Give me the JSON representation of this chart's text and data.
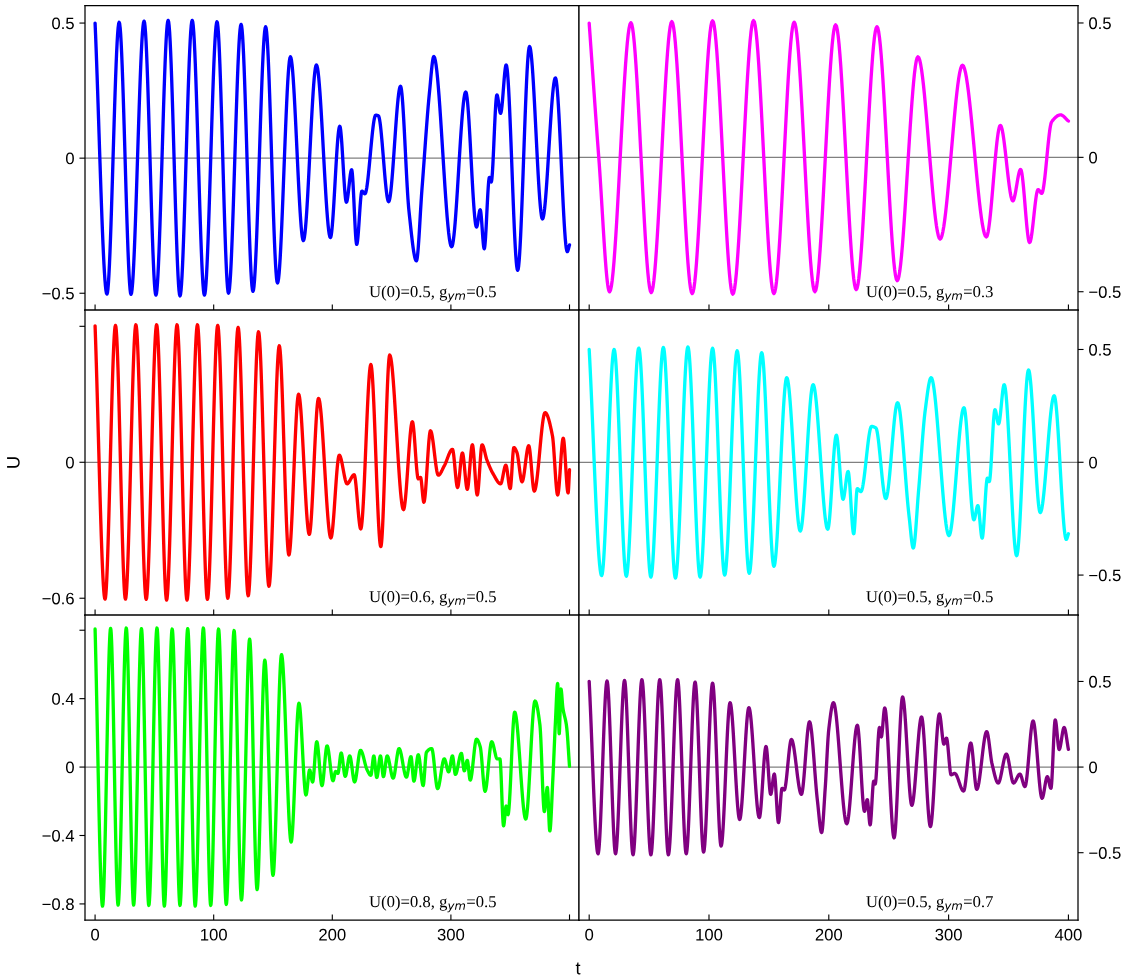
{
  "chart_data": [
    {
      "type": "line",
      "xlim": [
        -8.5,
        408
      ],
      "ylim": [
        -0.562,
        0.565
      ],
      "xticks": [
        0,
        100,
        200,
        300,
        400
      ],
      "yticks": [
        -0.5,
        0,
        0.5
      ],
      "tick_labels": "y",
      "ref_lines": [
        {
          "axis": "y",
          "value": 0,
          "color": "#808080"
        }
      ],
      "annotations": [
        "U(0)=0.5, g$_{ym}$=0.5"
      ],
      "series": [
        {
          "color": "#0000ff",
          "x": [
            0,
            10,
            20.3,
            30.3,
            41.3,
            51.3,
            61.6,
            71.6,
            81.9,
            92.2,
            102.8,
            112.5,
            123.1,
            133.1,
            143.8,
            153.8,
            164.7,
            175.6,
            186.6,
            198.4,
            206.3,
            211.9,
            216.3,
            220.6,
            225,
            227.5,
            236.6,
            238.8,
            247.5,
            257.5,
            264.7,
            270.9,
            275.6,
            281.9,
            285.6,
            300.6,
            312.5,
            321.6,
            324.7,
            328.1,
            332.5,
            334,
            338.8,
            341.9,
            346.6,
            356.3,
            366.3,
            377.2,
            388.1,
            398.1,
            400
          ],
          "values": [
            0.5,
            -0.503,
            0.503,
            -0.504,
            0.507,
            -0.507,
            0.51,
            -0.51,
            0.51,
            -0.507,
            0.505,
            -0.5,
            0.495,
            -0.493,
            0.486,
            -0.462,
            0.375,
            -0.305,
            0.345,
            -0.294,
            0.118,
            -0.163,
            -0.043,
            -0.319,
            -0.122,
            -0.132,
            0.159,
            0.157,
            -0.161,
            0.266,
            -0.198,
            -0.38,
            -0.115,
            0.242,
            0.376,
            -0.328,
            0.245,
            -0.255,
            -0.191,
            -0.335,
            -0.071,
            -0.088,
            0.234,
            0.166,
            0.345,
            -0.415,
            0.413,
            -0.225,
            0.297,
            -0.346,
            -0.321
          ]
        }
      ]
    },
    {
      "type": "line",
      "xlim": [
        -8.5,
        408
      ],
      "ylim": [
        -0.568,
        0.565
      ],
      "xticks": [
        0,
        100,
        200,
        300,
        400
      ],
      "yticks": [
        -0.5,
        0,
        0.5
      ],
      "tick_labels": "y",
      "ref_lines": [
        {
          "axis": "y",
          "value": 0,
          "color": "#808080"
        }
      ],
      "annotations": [
        "U(0)=0.5, g$_{ym}$=0.3"
      ],
      "series": [
        {
          "color": "#ff00ff",
          "x": [
            0,
            8,
            17,
            34.8,
            51.8,
            69,
            86,
            103,
            119.9,
            137.2,
            154.2,
            171.1,
            188.4,
            205.7,
            222.9,
            240.2,
            257.1,
            274.4,
            292.9,
            311.6,
            331.5,
            343.2,
            353.6,
            360.1,
            367.6,
            374.7,
            377.7,
            386,
            393.5,
            400
          ],
          "values": [
            0.499,
            0,
            -0.5,
            0.501,
            -0.503,
            0.505,
            -0.507,
            0.508,
            -0.509,
            0.509,
            -0.507,
            0.503,
            -0.5,
            0.493,
            -0.492,
            0.486,
            -0.459,
            0.374,
            -0.304,
            0.343,
            -0.296,
            0.119,
            -0.162,
            -0.045,
            -0.317,
            -0.12,
            -0.134,
            0.132,
            0.158,
            0.135
          ]
        }
      ]
    },
    {
      "type": "line",
      "xlim": [
        -8.5,
        408
      ],
      "ylim": [
        -0.674,
        0.672
      ],
      "xticks": [
        0,
        100,
        200,
        300,
        400
      ],
      "yticks": [
        {
          "value": 0.6,
          "label": null
        },
        0,
        -0.6
      ],
      "tick_labels": "y",
      "ylabel": "U",
      "ref_lines": [
        {
          "axis": "y",
          "value": 0,
          "color": "#808080"
        }
      ],
      "annotations": [
        "U(0)=0.6, g$_{ym}$=0.5"
      ],
      "series": [
        {
          "color": "#ff0000",
          "x": [
            0,
            8.4,
            17.2,
            25.6,
            34.4,
            43.1,
            51.9,
            60.3,
            69.1,
            77.5,
            86.3,
            94.7,
            103.4,
            111.9,
            120.6,
            129.1,
            137.8,
            146.6,
            155.3,
            163.4,
            171.6,
            180.6,
            188.4,
            198.8,
            205.9,
            212.5,
            218.4,
            224,
            232.5,
            240.9,
            248.4,
            260,
            267.5,
            272.5,
            274.4,
            277.2,
            282.8,
            289.4,
            294.4,
            301.3,
            305.6,
            309.7,
            313.8,
            318.1,
            322.2,
            326.3,
            330.3,
            335.6,
            341.9,
            346.3,
            350,
            353.1,
            355.6,
            360,
            365.6,
            370.3,
            379.4,
            385.6,
            390,
            394.7,
            398.8,
            400
          ],
          "values": [
            0.602,
            -0.604,
            0.604,
            -0.604,
            0.607,
            -0.605,
            0.607,
            -0.608,
            0.607,
            -0.608,
            0.607,
            -0.605,
            0.604,
            -0.6,
            0.595,
            -0.589,
            0.576,
            -0.547,
            0.514,
            -0.409,
            0.3,
            -0.318,
            0.282,
            -0.334,
            0.031,
            -0.095,
            -0.055,
            -0.294,
            0.431,
            -0.372,
            0.473,
            -0.209,
            0.179,
            -0.073,
            -0.067,
            -0.176,
            0.139,
            -0.057,
            -0.016,
            0.057,
            -0.111,
            0.041,
            -0.119,
            0.077,
            -0.144,
            0.077,
            0.011,
            -0.051,
            -0.095,
            -0.013,
            -0.116,
            0.065,
            0.044,
            -0.086,
            0.073,
            -0.127,
            0.219,
            0.117,
            -0.144,
            0.106,
            -0.135,
            -0.033
          ]
        }
      ]
    },
    {
      "type": "line",
      "xlim": [
        -8.5,
        408
      ],
      "ylim": [
        -0.677,
        0.675
      ],
      "xticks": [
        0,
        100,
        200,
        300,
        400
      ],
      "yticks": [
        -0.5,
        0,
        0.5
      ],
      "tick_labels": "y",
      "ref_lines": [
        {
          "axis": "y",
          "value": 0,
          "color": "#808080"
        }
      ],
      "annotations": [
        "U(0)=0.5, g$_{ym}$=0.5"
      ],
      "series": [
        {
          "color": "#00ffff",
          "x": [
            0,
            10.4,
            20.8,
            31,
            41.4,
            51.5,
            61.9,
            72,
            82.4,
            92.6,
            103,
            113.1,
            123.5,
            133.6,
            144,
            154.2,
            164.9,
            176.2,
            186.9,
            199.1,
            206.3,
            211.9,
            216.1,
            220.8,
            223.8,
            226.8,
            235.7,
            239.3,
            247.6,
            257.4,
            267,
            270.5,
            275,
            280.4,
            285.4,
            300.3,
            312.8,
            321.1,
            324.4,
            328,
            332.4,
            333.9,
            338.7,
            341.7,
            346.4,
            356.8,
            366.7,
            376.5,
            388.1,
            398.2,
            400
          ],
          "values": [
            0.5,
            -0.502,
            0.5,
            -0.505,
            0.506,
            -0.509,
            0.509,
            -0.513,
            0.511,
            -0.509,
            0.505,
            -0.5,
            0.494,
            -0.492,
            0.486,
            -0.461,
            0.375,
            -0.305,
            0.344,
            -0.297,
            0.12,
            -0.164,
            -0.041,
            -0.317,
            -0.117,
            -0.13,
            0.159,
            0.152,
            -0.161,
            0.264,
            -0.239,
            -0.38,
            -0.122,
            0.227,
            0.375,
            -0.325,
            0.242,
            -0.255,
            -0.192,
            -0.336,
            -0.07,
            -0.086,
            0.233,
            0.17,
            0.344,
            -0.414,
            0.409,
            -0.223,
            0.295,
            -0.342,
            -0.317
          ]
        }
      ]
    },
    {
      "type": "line",
      "xlim": [
        -8.5,
        408
      ],
      "ylim": [
        -0.894,
        0.889
      ],
      "xticks": [
        0,
        100,
        200,
        300,
        {
          "value": 400,
          "label": null
        }
      ],
      "yticks": [
        {
          "value": 0.8,
          "label": null
        },
        0.4,
        0,
        -0.4,
        -0.8
      ],
      "xlabel": "t",
      "ref_lines": [
        {
          "axis": "y",
          "value": 0,
          "color": "#808080"
        }
      ],
      "annotations": [
        "U(0)=0.8, g$_{ym}$=0.5"
      ],
      "series": [
        {
          "color": "#00ff00",
          "x": [
            0,
            6.3,
            13.1,
            19.4,
            26.3,
            32.5,
            39.1,
            45.3,
            52.2,
            58.4,
            65,
            71.6,
            78.1,
            84.4,
            91.3,
            97.5,
            104.1,
            110.6,
            117.2,
            123.4,
            130.3,
            136.6,
            143.1,
            150,
            157.2,
            165.3,
            171.9,
            177.8,
            180.9,
            183.4,
            186.9,
            191.3,
            195.6,
            200.6,
            202.8,
            204.7,
            207.5,
            210.9,
            214.7,
            218.8,
            223.8,
            229.4,
            232.5,
            235,
            237.5,
            240.6,
            243.1,
            246.3,
            251.3,
            256.3,
            262.5,
            266.3,
            268.8,
            272.5,
            276.6,
            279.4,
            283.8,
            288.8,
            294.4,
            298.1,
            301.3,
            303.8,
            308.8,
            311.3,
            313.8,
            316.3,
            321.6,
            324.7,
            328.8,
            334.4,
            339.1,
            341.3,
            344.4,
            346.6,
            348.1,
            353.8,
            363.1,
            370.9,
            375,
            378.8,
            381.3,
            383.4,
            385.9,
            388.1,
            390,
            391.3,
            392.8,
            394.4,
            397.5,
            400
          ],
          "values": [
            0.807,
            -0.813,
            0.811,
            -0.807,
            0.813,
            -0.807,
            0.809,
            -0.809,
            0.813,
            -0.813,
            0.807,
            -0.809,
            0.809,
            -0.813,
            0.813,
            -0.809,
            0.807,
            -0.803,
            0.798,
            -0.777,
            0.748,
            -0.716,
            0.625,
            -0.633,
            0.657,
            -0.438,
            0.373,
            -0.163,
            -0.017,
            -0.087,
            0.148,
            -0.108,
            0.124,
            -0.08,
            -0.026,
            -0.037,
            0.082,
            -0.054,
            0.065,
            -0.087,
            0.098,
            -0.017,
            -0.048,
            0.065,
            -0.061,
            0.065,
            -0.056,
            0.065,
            -0.065,
            0.108,
            -0.059,
            0.061,
            -0.082,
            0.072,
            -0.108,
            0.087,
            0.108,
            -0.126,
            0.048,
            -0.028,
            0.065,
            -0.043,
            0.08,
            -0.022,
            0.039,
            -0.076,
            0.163,
            0.119,
            -0.141,
            0.148,
            0.048,
            0.048,
            -0.343,
            -0.228,
            -0.278,
            0.321,
            -0.304,
            0.386,
            0.249,
            -0.26,
            -0.119,
            -0.373,
            -0.076,
            0.26,
            0.488,
            0.195,
            0.456,
            0.347,
            0.239,
            0.004
          ]
        }
      ]
    },
    {
      "type": "line",
      "xlim": [
        -8.5,
        408
      ],
      "ylim": [
        -0.893,
        0.888
      ],
      "xticks": [
        0,
        100,
        200,
        300,
        400
      ],
      "yticks": [
        -0.5,
        0,
        0.5
      ],
      "ref_lines": [
        {
          "axis": "y",
          "value": 0,
          "color": "#808080"
        }
      ],
      "annotations": [
        "U(0)=0.5, g$_{ym}$=0.7"
      ],
      "series": [
        {
          "color": "#800080",
          "x": [
            0,
            7.4,
            14.9,
            22,
            29.5,
            36.6,
            44,
            51.5,
            58.9,
            66.1,
            73.8,
            81,
            88.4,
            95.5,
            103,
            110.1,
            117.6,
            125.6,
            133.3,
            142,
            147.6,
            151.5,
            154.5,
            158,
            161,
            162.8,
            168.8,
            177.1,
            183.9,
            190.5,
            194,
            197,
            200,
            203.9,
            215,
            223.8,
            229.8,
            232.1,
            234.5,
            237.5,
            238.7,
            242.3,
            243.8,
            246.7,
            254.5,
            261.6,
            269.3,
            277.4,
            284.8,
            292.3,
            296.1,
            298.2,
            302.1,
            305.1,
            312.5,
            318.5,
            323.5,
            331.8,
            336.3,
            341.4,
            348.2,
            354.2,
            359.5,
            363.7,
            370.5,
            378,
            382.4,
            385.4,
            389,
            392.3,
            396.4,
            400
          ],
          "values": [
            0.5,
            -0.506,
            0.502,
            -0.506,
            0.506,
            -0.512,
            0.51,
            -0.512,
            0.51,
            -0.512,
            0.51,
            -0.506,
            0.496,
            -0.496,
            0.49,
            -0.461,
            0.376,
            -0.306,
            0.347,
            -0.295,
            0.12,
            -0.159,
            -0.041,
            -0.324,
            -0.124,
            -0.134,
            0.161,
            -0.159,
            0.264,
            -0.196,
            -0.382,
            -0.124,
            0.221,
            0.376,
            -0.331,
            0.244,
            -0.258,
            -0.19,
            -0.337,
            -0.083,
            -0.099,
            0.231,
            0.176,
            0.345,
            -0.413,
            0.409,
            -0.223,
            0.293,
            -0.347,
            0.31,
            0.134,
            0.169,
            -0.045,
            -0.037,
            -0.14,
            0.14,
            -0.13,
            0.207,
            0.017,
            -0.093,
            0.076,
            -0.093,
            -0.041,
            -0.114,
            0.269,
            -0.182,
            -0.056,
            -0.124,
            0.275,
            0.103,
            0.231,
            0.103
          ]
        }
      ]
    }
  ]
}
